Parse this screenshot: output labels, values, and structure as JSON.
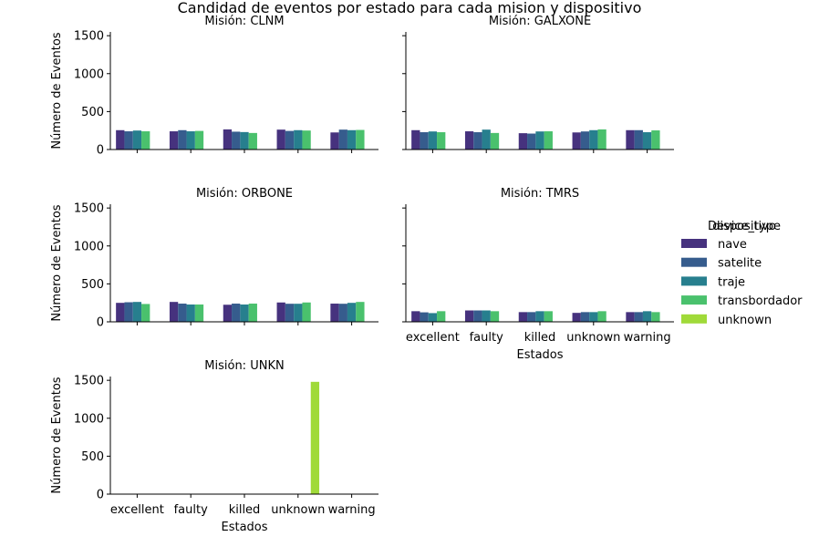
{
  "chart_data": {
    "type": "bar",
    "title": "Candidad de eventos por estado para cada mision y dispositivo",
    "xlabel": "Estados",
    "ylabel": "Número de Eventos",
    "categories": [
      "excellent",
      "faulty",
      "killed",
      "unknown",
      "warning"
    ],
    "ylim": [
      0,
      1550
    ],
    "yticks": [
      0,
      500,
      1000,
      1500
    ],
    "grid": false,
    "legend": {
      "title_overlap": [
        "dispositivo",
        "Device_type"
      ],
      "position": "right",
      "entries": [
        "nave",
        "satelite",
        "traje",
        "transbordador",
        "unknown"
      ]
    },
    "colors": {
      "nave": "#46327e",
      "satelite": "#365c8d",
      "traje": "#277f8e",
      "transbordador": "#4ac16d",
      "unknown": "#a0da39"
    },
    "panels": [
      {
        "title": "Misión: CLNM",
        "series": [
          {
            "name": "nave",
            "values": [
              255,
              240,
              265,
              262,
              225
            ]
          },
          {
            "name": "satelite",
            "values": [
              240,
              255,
              235,
              245,
              262
            ]
          },
          {
            "name": "traje",
            "values": [
              250,
              240,
              230,
              255,
              255
            ]
          },
          {
            "name": "transbordador",
            "values": [
              240,
              245,
              218,
              250,
              258
            ]
          },
          {
            "name": "unknown",
            "values": [
              0,
              0,
              0,
              0,
              0
            ]
          }
        ]
      },
      {
        "title": "Misión: GALXONE",
        "series": [
          {
            "name": "nave",
            "values": [
              255,
              240,
              215,
              225,
              255
            ]
          },
          {
            "name": "satelite",
            "values": [
              228,
              228,
              210,
              238,
              255
            ]
          },
          {
            "name": "traje",
            "values": [
              238,
              262,
              238,
              255,
              228
            ]
          },
          {
            "name": "transbordador",
            "values": [
              228,
              218,
              240,
              265,
              252
            ]
          },
          {
            "name": "unknown",
            "values": [
              0,
              0,
              0,
              0,
              0
            ]
          }
        ]
      },
      {
        "title": "Misión: ORBONE",
        "series": [
          {
            "name": "nave",
            "values": [
              250,
              262,
              225,
              255,
              240
            ]
          },
          {
            "name": "satelite",
            "values": [
              258,
              240,
              240,
              238,
              238
            ]
          },
          {
            "name": "traje",
            "values": [
              262,
              228,
              228,
              238,
              250
            ]
          },
          {
            "name": "transbordador",
            "values": [
              235,
              228,
              240,
              255,
              262
            ]
          },
          {
            "name": "unknown",
            "values": [
              0,
              0,
              0,
              0,
              0
            ]
          }
        ]
      },
      {
        "title": "Misión: TMRS",
        "series": [
          {
            "name": "nave",
            "values": [
              140,
              150,
              128,
              118,
              128
            ]
          },
          {
            "name": "satelite",
            "values": [
              125,
              150,
              128,
              128,
              128
            ]
          },
          {
            "name": "traje",
            "values": [
              115,
              150,
              140,
              128,
              140
            ]
          },
          {
            "name": "transbordador",
            "values": [
              140,
              140,
              140,
              140,
              128
            ]
          },
          {
            "name": "unknown",
            "values": [
              0,
              0,
              0,
              0,
              0
            ]
          }
        ]
      },
      {
        "title": "Misión: UNKN",
        "series": [
          {
            "name": "nave",
            "values": [
              0,
              0,
              0,
              0,
              0
            ]
          },
          {
            "name": "satelite",
            "values": [
              0,
              0,
              0,
              0,
              0
            ]
          },
          {
            "name": "traje",
            "values": [
              0,
              0,
              0,
              0,
              0
            ]
          },
          {
            "name": "transbordador",
            "values": [
              0,
              0,
              0,
              0,
              0
            ]
          },
          {
            "name": "unknown",
            "values": [
              0,
              0,
              0,
              1480,
              0
            ]
          }
        ]
      }
    ]
  }
}
